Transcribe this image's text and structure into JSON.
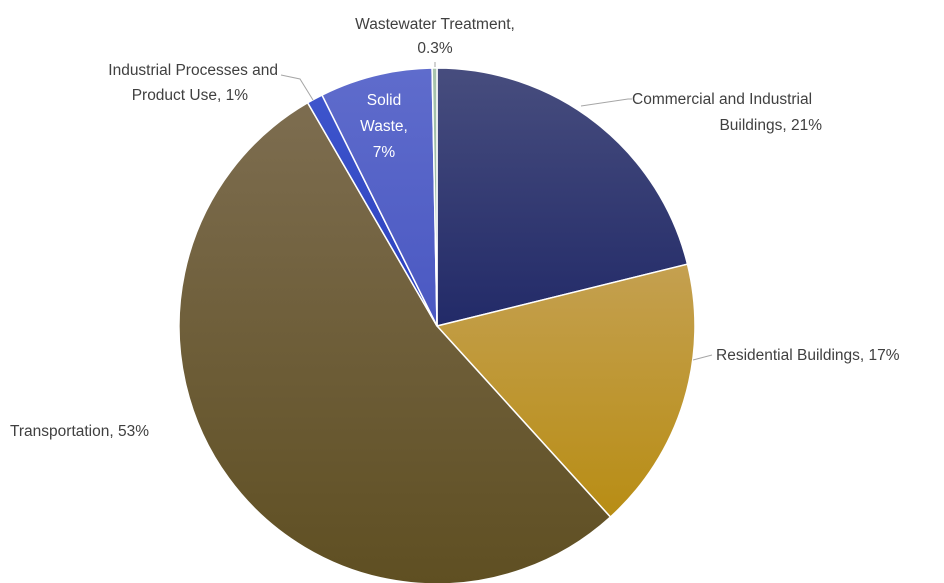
{
  "chart_data": {
    "type": "pie",
    "title": "",
    "slices": [
      {
        "label": "Commercial and Industrial Buildings",
        "value": 21,
        "percent_label": "21%",
        "color": "#222a68",
        "color_light": "#474d7e"
      },
      {
        "label": "Residential Buildings",
        "value": 17,
        "percent_label": "17%",
        "color": "#b88d14",
        "color_light": "#c4a050"
      },
      {
        "label": "Transportation",
        "value": 53,
        "percent_label": "53%",
        "color": "#5f4f22",
        "color_light": "#7d6d50"
      },
      {
        "label": "Industrial Processes and Product Use",
        "value": 1,
        "percent_label": "1%",
        "color": "#2a3fbf",
        "color_light": "#3e55cc"
      },
      {
        "label": "Solid Waste",
        "value": 7,
        "percent_label": "7%",
        "color": "#4a58c2",
        "color_light": "#5f6ccc"
      },
      {
        "label": "Wastewater Treatment",
        "value": 0.3,
        "percent_label": "0.3%",
        "color": "#8fb39a",
        "color_light": "#a8c4ae"
      }
    ],
    "labels": {
      "commercial": {
        "line1": "Commercial and Industrial",
        "line2": "Buildings, 21%"
      },
      "residential": {
        "line1": "Residential Buildings, 17%"
      },
      "transportation": {
        "line1": "Transportation, 53%"
      },
      "industrial": {
        "line1": "Industrial Processes and",
        "line2": "Product Use, 1%"
      },
      "solid_waste": {
        "line1": "Solid",
        "line2": "Waste,",
        "line3": "7%"
      },
      "wastewater": {
        "line1": "Wastewater Treatment,",
        "line2": "0.3%"
      }
    }
  }
}
